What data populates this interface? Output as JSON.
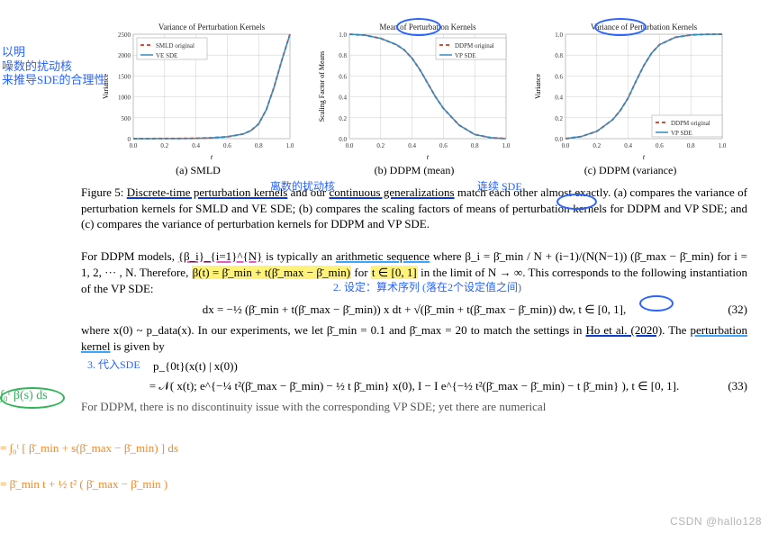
{
  "charts": {
    "smld": {
      "type": "line",
      "title": "Variance of Perturbation Kernels",
      "xlabel": "t",
      "ylabel": "Variance",
      "xlim": [
        0.0,
        1.0
      ],
      "xticks": [
        0.0,
        0.2,
        0.4,
        0.6,
        0.8,
        1.0
      ],
      "ylim": [
        0,
        2500
      ],
      "yticks": [
        0,
        500,
        1000,
        1500,
        2000,
        2500
      ],
      "background_color": "#ffffff",
      "grid_color": "#cccccc",
      "grid": true,
      "title_fontsize": 9,
      "tick_fontsize": 7,
      "series": [
        {
          "label": "SMLD original",
          "color": "#e24a33",
          "dash": "4 3",
          "width": 2,
          "x": [
            0.0,
            0.1,
            0.2,
            0.3,
            0.4,
            0.5,
            0.6,
            0.7,
            0.75,
            0.8,
            0.85,
            0.9,
            0.95,
            1.0
          ],
          "y": [
            0,
            1,
            2,
            4,
            8,
            20,
            45,
            110,
            190,
            350,
            700,
            1250,
            1900,
            2500
          ]
        },
        {
          "label": "VE SDE",
          "color": "#348abd",
          "dash": "none",
          "width": 1.5,
          "x": [
            0.0,
            0.1,
            0.2,
            0.3,
            0.4,
            0.5,
            0.6,
            0.7,
            0.75,
            0.8,
            0.85,
            0.9,
            0.95,
            1.0
          ],
          "y": [
            0,
            1,
            2,
            4,
            8,
            20,
            45,
            110,
            190,
            350,
            700,
            1250,
            1900,
            2500
          ]
        }
      ],
      "legend_pos": "upper-left"
    },
    "ddpm_mean": {
      "type": "line",
      "title": "Mean of Perturbation Kernels",
      "xlabel": "t",
      "ylabel": "Scaling Factor of Means",
      "xlim": [
        0.0,
        1.0
      ],
      "xticks": [
        0.0,
        0.2,
        0.4,
        0.6,
        0.8,
        1.0
      ],
      "ylim": [
        0.0,
        1.0
      ],
      "yticks": [
        0.0,
        0.2,
        0.4,
        0.6,
        0.8,
        1.0
      ],
      "background_color": "#ffffff",
      "grid_color": "#cccccc",
      "grid": true,
      "title_fontsize": 9,
      "tick_fontsize": 7,
      "series": [
        {
          "label": "DDPM original",
          "color": "#e24a33",
          "dash": "4 3",
          "width": 2,
          "x": [
            0.0,
            0.1,
            0.2,
            0.3,
            0.35,
            0.4,
            0.45,
            0.5,
            0.55,
            0.6,
            0.7,
            0.8,
            0.9,
            1.0
          ],
          "y": [
            1.0,
            0.99,
            0.96,
            0.9,
            0.85,
            0.77,
            0.66,
            0.53,
            0.4,
            0.29,
            0.13,
            0.04,
            0.01,
            0.0
          ]
        },
        {
          "label": "VP SDE",
          "color": "#348abd",
          "dash": "none",
          "width": 1.5,
          "x": [
            0.0,
            0.1,
            0.2,
            0.3,
            0.35,
            0.4,
            0.45,
            0.5,
            0.55,
            0.6,
            0.7,
            0.8,
            0.9,
            1.0
          ],
          "y": [
            1.0,
            0.99,
            0.96,
            0.9,
            0.85,
            0.77,
            0.66,
            0.53,
            0.4,
            0.29,
            0.13,
            0.04,
            0.01,
            0.0
          ]
        }
      ],
      "legend_pos": "upper-right"
    },
    "ddpm_var": {
      "type": "line",
      "title": "Variance of Perturbation Kernels",
      "xlabel": "t",
      "ylabel": "Variance",
      "xlim": [
        0.0,
        1.0
      ],
      "xticks": [
        0.0,
        0.2,
        0.4,
        0.6,
        0.8,
        1.0
      ],
      "ylim": [
        0.0,
        1.0
      ],
      "yticks": [
        0.0,
        0.2,
        0.4,
        0.6,
        0.8,
        1.0
      ],
      "background_color": "#ffffff",
      "grid_color": "#cccccc",
      "grid": true,
      "title_fontsize": 9,
      "tick_fontsize": 7,
      "series": [
        {
          "label": "DDPM original",
          "color": "#e24a33",
          "dash": "4 3",
          "width": 2,
          "x": [
            0.0,
            0.1,
            0.2,
            0.3,
            0.35,
            0.4,
            0.45,
            0.5,
            0.55,
            0.6,
            0.7,
            0.8,
            0.9,
            1.0
          ],
          "y": [
            0.0,
            0.02,
            0.07,
            0.18,
            0.27,
            0.39,
            0.55,
            0.7,
            0.82,
            0.9,
            0.97,
            0.993,
            0.999,
            1.0
          ]
        },
        {
          "label": "VP SDE",
          "color": "#348abd",
          "dash": "none",
          "width": 1.5,
          "x": [
            0.0,
            0.1,
            0.2,
            0.3,
            0.35,
            0.4,
            0.45,
            0.5,
            0.55,
            0.6,
            0.7,
            0.8,
            0.9,
            1.0
          ],
          "y": [
            0.0,
            0.02,
            0.07,
            0.18,
            0.27,
            0.39,
            0.55,
            0.7,
            0.82,
            0.9,
            0.97,
            0.993,
            0.999,
            1.0
          ]
        }
      ],
      "legend_pos": "lower-right"
    }
  },
  "subcaptions": {
    "a": "(a) SMLD",
    "b": "(b) DDPM (mean)",
    "c": "(c) DDPM (variance)"
  },
  "figcaption": {
    "label": "Figure 5:",
    "l1a": "Discrete-time perturbation kernels",
    "l1b": " and our ",
    "l1c": "continuous generalizations",
    "l1d": " match each other",
    "rest": "almost exactly. (a) compares the variance of perturbation kernels for SMLD and VE SDE; (b) compares the scaling factors of means of perturbation kernels for DDPM and VP SDE; and (c) compares the variance of perturbation kernels for DDPM and VP SDE."
  },
  "para1": {
    "a": "For DDPM models, ",
    "beta_seq": "{β_i}_{i=1}^{N}",
    "b": " is typically an ",
    "arith": "arithmetic sequence",
    "c": " where ",
    "beta_eq": "β_i = β̄_min / N + (i−1)/(N(N−1)) (β̄_max − β̄_min)",
    "d": " for i = 1, 2, ··· , N. Therefore, ",
    "bt": "β(t) = β̄_min + t(β̄_max − β̄_min)",
    "e": " for ",
    "trange": "t ∈ [0, 1]",
    "f": " in the limit of ",
    "ninf": "N → ∞",
    "g": ". This corresponds to the following instantiation of the VP SDE:"
  },
  "eq32": {
    "body": "dx = −½ (β̄_min + t(β̄_max − β̄_min)) x dt + √(β̄_min + t(β̄_max − β̄_min)) dw,    t ∈ [0, 1],",
    "num": "(32)"
  },
  "para2": {
    "a": "where x(0) ~ p_data(x). In our experiments, we let β̄_min = 0.1 and β̄_max = 20 to match the settings in ",
    "ref": "Ho et al. (2020)",
    "b": ". The ",
    "pk": "perturbation kernel",
    "c": " is given by"
  },
  "eqkern": {
    "lhs": "p_{0t}(x(t) | x(0))"
  },
  "eq33": {
    "body": "= 𝒩( x(t); e^{−¼ t²(β̄_max − β̄_min) − ½ t β̄_min} x(0), I − I e^{−½ t²(β̄_max − β̄_min) − t β̄_min} ),    t ∈ [0, 1].",
    "num": "(33)"
  },
  "lastline": "For DDPM, there is no discontinuity issue with the corresponding VP SDE; yet there are numerical",
  "handwriting": {
    "left_note": "以明\n噪数的扰动核\n来推导SDE的合理性",
    "mid1": "离数的扰动核",
    "mid2": "连续 SDE",
    "note2": "2. 设定：算术序列 (落在2个设定值之间)",
    "note3": "3. 代入SDE",
    "calc1": "∫₀ᵗ β(s) ds",
    "calc2": "= ∫₀ᵗ [ β̄_min + s(β̄_max − β̄_min) ] ds",
    "calc3": "= β̄_min t + ½ t² ( β̄_max − β̄_min )"
  },
  "watermark": "CSDN @hallo128"
}
